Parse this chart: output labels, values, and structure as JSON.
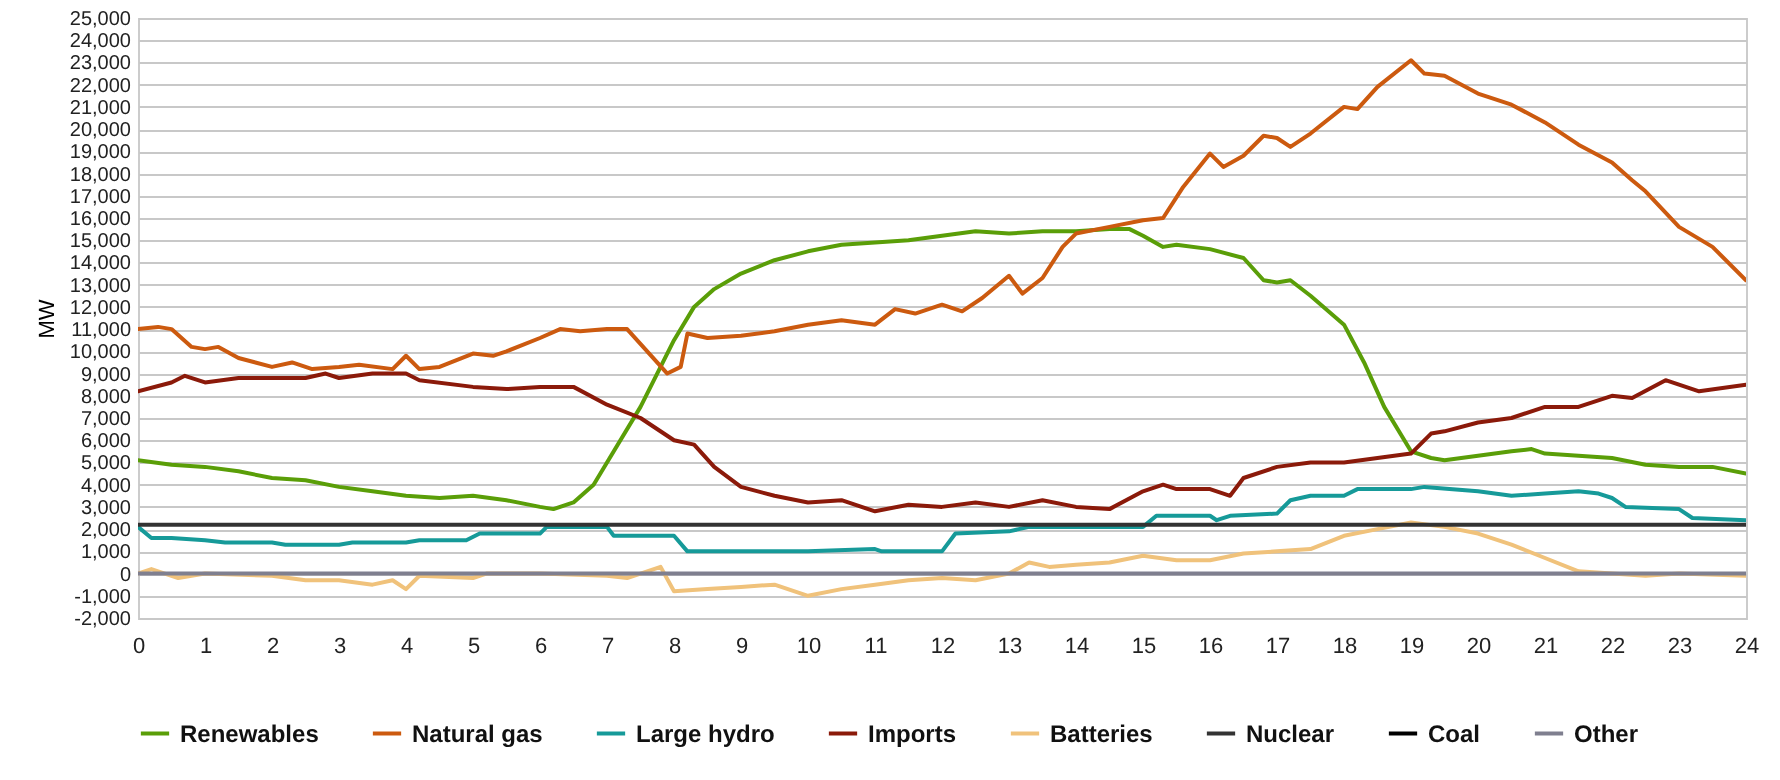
{
  "chart_data": {
    "type": "line",
    "ylabel": "MW",
    "xlim": [
      0,
      24
    ],
    "xticks": [
      0,
      1,
      2,
      3,
      4,
      5,
      6,
      7,
      8,
      9,
      10,
      11,
      12,
      13,
      14,
      15,
      16,
      17,
      18,
      19,
      20,
      21,
      22,
      23,
      24
    ],
    "ylim": [
      -2000,
      25000
    ],
    "yticks": [
      {
        "value": -2000,
        "label": "-2,000"
      },
      {
        "value": -1000,
        "label": "-1,000"
      },
      0,
      {
        "value": 1000,
        "label": "1,000"
      },
      {
        "value": 2000,
        "label": "2,000"
      },
      {
        "value": 3000,
        "label": "3,000"
      },
      {
        "value": 4000,
        "label": "4,000"
      },
      {
        "value": 5000,
        "label": "5,000"
      },
      {
        "value": 6000,
        "label": "6,000"
      },
      {
        "value": 7000,
        "label": "7,000"
      },
      {
        "value": 8000,
        "label": "8,000"
      },
      {
        "value": 9000,
        "label": "9,000"
      },
      {
        "value": 10000,
        "label": "10,000"
      },
      {
        "value": 11000,
        "label": "11,000"
      },
      {
        "value": 12000,
        "label": "12,000"
      },
      {
        "value": 13000,
        "label": "13,000"
      },
      {
        "value": 14000,
        "label": "14,000"
      },
      {
        "value": 15000,
        "label": "15,000"
      },
      {
        "value": 16000,
        "label": "16,000"
      },
      {
        "value": 17000,
        "label": "17,000"
      },
      {
        "value": 18000,
        "label": "18,000"
      },
      {
        "value": 19000,
        "label": "19,000"
      },
      {
        "value": 20000,
        "label": "20,000"
      },
      {
        "value": 21000,
        "label": "21,000"
      },
      {
        "value": 22000,
        "label": "22,000"
      },
      {
        "value": 23000,
        "label": "23,000"
      },
      {
        "value": 24000,
        "label": "24,000"
      },
      {
        "value": 25000,
        "label": "25,000"
      }
    ],
    "grid": "y",
    "legend": "bottom",
    "series": [
      {
        "name": "Renewables",
        "color": "#5a9e08",
        "x": [
          0,
          0.5,
          1,
          1.5,
          2,
          2.5,
          3,
          3.5,
          4,
          4.5,
          5,
          5.5,
          6,
          6.2,
          6.5,
          6.8,
          7,
          7.5,
          8,
          8.3,
          8.6,
          9,
          9.5,
          10,
          10.5,
          11,
          11.5,
          12,
          12.5,
          13,
          13.5,
          14,
          14.5,
          14.8,
          15,
          15.3,
          15.5,
          16,
          16.5,
          16.8,
          17,
          17.2,
          17.5,
          18,
          18.3,
          18.6,
          19,
          19.3,
          19.5,
          20,
          20.5,
          20.8,
          21,
          21.5,
          22,
          22.5,
          23,
          23.5,
          24
        ],
        "values": [
          5100,
          4900,
          4800,
          4600,
          4300,
          4200,
          3900,
          3700,
          3500,
          3400,
          3500,
          3300,
          3000,
          2900,
          3200,
          4000,
          5000,
          7500,
          10500,
          12000,
          12800,
          13500,
          14100,
          14500,
          14800,
          14900,
          15000,
          15200,
          15400,
          15300,
          15400,
          15400,
          15500,
          15500,
          15200,
          14700,
          14800,
          14600,
          14200,
          13200,
          13100,
          13200,
          12500,
          11200,
          9500,
          7500,
          5500,
          5200,
          5100,
          5300,
          5500,
          5600,
          5400,
          5300,
          5200,
          4900,
          4800,
          4800,
          4500
        ]
      },
      {
        "name": "Natural gas",
        "color": "#cc5a0f",
        "x": [
          0,
          0.3,
          0.5,
          0.8,
          1,
          1.2,
          1.5,
          2,
          2.3,
          2.6,
          3,
          3.3,
          3.8,
          4,
          4.2,
          4.5,
          5,
          5.3,
          5.5,
          6,
          6.3,
          6.6,
          7,
          7.3,
          7.6,
          7.9,
          8.1,
          8.2,
          8.5,
          9,
          9.5,
          10,
          10.5,
          11,
          11.3,
          11.6,
          12,
          12.3,
          12.6,
          13,
          13.2,
          13.5,
          13.8,
          14,
          14.5,
          15,
          15.3,
          15.6,
          16,
          16.2,
          16.5,
          16.8,
          17,
          17.2,
          17.5,
          18,
          18.2,
          18.5,
          19,
          19.2,
          19.5,
          20,
          20.5,
          21,
          21.5,
          22,
          22.3,
          22.5,
          23,
          23.5,
          24
        ],
        "values": [
          11000,
          11100,
          11000,
          10200,
          10100,
          10200,
          9700,
          9300,
          9500,
          9200,
          9300,
          9400,
          9200,
          9800,
          9200,
          9300,
          9900,
          9800,
          10000,
          10600,
          11000,
          10900,
          11000,
          11000,
          10000,
          9000,
          9300,
          10800,
          10600,
          10700,
          10900,
          11200,
          11400,
          11200,
          11900,
          11700,
          12100,
          11800,
          12400,
          13400,
          12600,
          13300,
          14700,
          15300,
          15600,
          15900,
          16000,
          17400,
          18900,
          18300,
          18800,
          19700,
          19600,
          19200,
          19800,
          21000,
          20900,
          21900,
          23100,
          22500,
          22400,
          21600,
          21100,
          20300,
          19300,
          18500,
          17700,
          17200,
          15600,
          14700,
          13200
        ]
      },
      {
        "name": "Large hydro",
        "color": "#169a99",
        "x": [
          0,
          0.2,
          0.5,
          1,
          1.3,
          2,
          2.2,
          3,
          3.2,
          4,
          4.2,
          4.9,
          5.1,
          5.5,
          6,
          6.1,
          7,
          7.1,
          8,
          8.2,
          9,
          10,
          11,
          11.1,
          12,
          12.2,
          13,
          13.3,
          15,
          15.2,
          16,
          16.1,
          16.3,
          17,
          17.2,
          17.5,
          18,
          18.2,
          19,
          19.2,
          20,
          20.5,
          21,
          21.5,
          21.8,
          22,
          22.2,
          23,
          23.2,
          24
        ],
        "values": [
          2100,
          1600,
          1600,
          1500,
          1400,
          1400,
          1300,
          1300,
          1400,
          1400,
          1500,
          1500,
          1800,
          1800,
          1800,
          2100,
          2100,
          1700,
          1700,
          1000,
          1000,
          1000,
          1100,
          1000,
          1000,
          1800,
          1900,
          2100,
          2100,
          2600,
          2600,
          2400,
          2600,
          2700,
          3300,
          3500,
          3500,
          3800,
          3800,
          3900,
          3700,
          3500,
          3600,
          3700,
          3600,
          3400,
          3000,
          2900,
          2500,
          2400
        ]
      },
      {
        "name": "Imports",
        "color": "#8b1a0a",
        "x": [
          0,
          0.5,
          0.7,
          1,
          1.5,
          2,
          2.5,
          2.8,
          3,
          3.5,
          4,
          4.2,
          5,
          5.5,
          6,
          6.5,
          7,
          7.5,
          8,
          8.3,
          8.6,
          9,
          9.5,
          10,
          10.5,
          11,
          11.5,
          12,
          12.5,
          13,
          13.5,
          14,
          14.5,
          15,
          15.3,
          15.5,
          16,
          16.3,
          16.5,
          17,
          17.5,
          18,
          18.5,
          19,
          19.3,
          19.5,
          20,
          20.5,
          21,
          21.5,
          22,
          22.3,
          22.8,
          23,
          23.3,
          24
        ],
        "values": [
          8200,
          8600,
          8900,
          8600,
          8800,
          8800,
          8800,
          9000,
          8800,
          9000,
          9000,
          8700,
          8400,
          8300,
          8400,
          8400,
          7600,
          7000,
          6000,
          5800,
          4800,
          3900,
          3500,
          3200,
          3300,
          2800,
          3100,
          3000,
          3200,
          3000,
          3300,
          3000,
          2900,
          3700,
          4000,
          3800,
          3800,
          3500,
          4300,
          4800,
          5000,
          5000,
          5200,
          5400,
          6300,
          6400,
          6800,
          7000,
          7500,
          7500,
          8000,
          7900,
          8700,
          8500,
          8200,
          8500
        ]
      },
      {
        "name": "Batteries",
        "color": "#f0c27b",
        "x": [
          0,
          0.2,
          0.5,
          0.6,
          1,
          2,
          2.5,
          3,
          3.5,
          3.8,
          4,
          4.2,
          5,
          5.2,
          6,
          7,
          7.3,
          7.5,
          7.8,
          8,
          8.5,
          9,
          9.5,
          10,
          10.5,
          11,
          11.5,
          12,
          12.5,
          13,
          13.3,
          13.6,
          14,
          14.5,
          15,
          15.5,
          16,
          16.5,
          17,
          17.5,
          18,
          18.5,
          19,
          19.5,
          20,
          20.5,
          21,
          21.5,
          22,
          22.5,
          23,
          24
        ],
        "values": [
          0,
          200,
          -100,
          -200,
          0,
          -100,
          -300,
          -300,
          -500,
          -300,
          -700,
          -100,
          -200,
          0,
          0,
          -100,
          -200,
          0,
          300,
          -800,
          -700,
          -600,
          -500,
          -1000,
          -700,
          -500,
          -300,
          -200,
          -300,
          0,
          500,
          300,
          400,
          500,
          800,
          600,
          600,
          900,
          1000,
          1100,
          1700,
          2000,
          2300,
          2100,
          1800,
          1300,
          700,
          100,
          0,
          -100,
          0,
          -100
        ]
      },
      {
        "name": "Nuclear",
        "color": "#333333",
        "x": [
          0,
          24
        ],
        "values": [
          2200,
          2200
        ]
      },
      {
        "name": "Coal",
        "color": "#000000"
      },
      {
        "name": "Other",
        "color": "#7f7f8f",
        "x": [
          0,
          24
        ],
        "values": [
          0,
          0
        ]
      }
    ]
  }
}
